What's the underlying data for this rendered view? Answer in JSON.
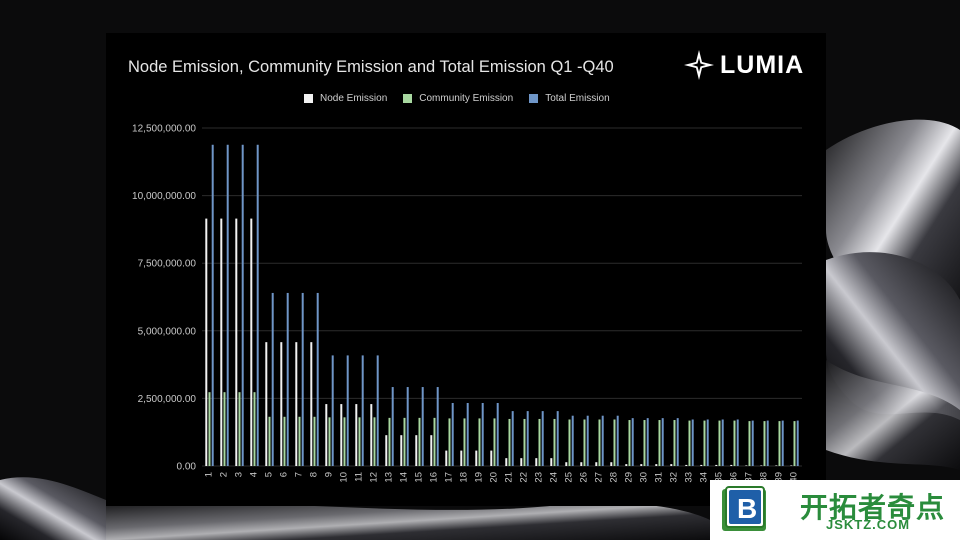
{
  "slide": {
    "logo_text": "LUMIA",
    "watermark": {
      "chinese_text": "开拓者奇点",
      "domain_text": "JSKTZ.COM",
      "badge_letter": "B"
    }
  },
  "colors": {
    "node": "#f2f2f2",
    "community": "#a8d8a0",
    "total": "#6f96c8",
    "grid": "#2c2c2c",
    "axis_text": "#c8c8c8"
  },
  "chart_data": {
    "type": "bar",
    "title": "Node Emission, Community Emission and Total Emission Q1 -Q40",
    "xlabel": "",
    "ylabel": "",
    "ylim": [
      0,
      12500000
    ],
    "y_ticks": [
      "0.00",
      "2,500,000.00",
      "5,000,000.00",
      "7,500,000.00",
      "10,000,000.00",
      "12,500,000.00"
    ],
    "y_tick_values": [
      0,
      2500000,
      5000000,
      7500000,
      10000000,
      12500000
    ],
    "grid": true,
    "legend_position": "top",
    "categories": [
      "1",
      "2",
      "3",
      "4",
      "5",
      "6",
      "7",
      "8",
      "9",
      "10",
      "11",
      "12",
      "13",
      "14",
      "15",
      "16",
      "17",
      "18",
      "19",
      "20",
      "21",
      "22",
      "23",
      "24",
      "25",
      "26",
      "27",
      "28",
      "29",
      "30",
      "31",
      "32",
      "33",
      "34",
      "35",
      "36",
      "37",
      "38",
      "39",
      "40"
    ],
    "series": [
      {
        "name": "Node Emission",
        "values": [
          9150000,
          9150000,
          9150000,
          9150000,
          4580000,
          4580000,
          4580000,
          4580000,
          2290000,
          2290000,
          2290000,
          2290000,
          1140000,
          1140000,
          1140000,
          1140000,
          570000,
          570000,
          570000,
          570000,
          290000,
          290000,
          290000,
          290000,
          140000,
          140000,
          140000,
          140000,
          70000,
          70000,
          70000,
          70000,
          40000,
          40000,
          40000,
          40000,
          20000,
          20000,
          20000,
          20000
        ]
      },
      {
        "name": "Community Emission",
        "values": [
          2730000,
          2730000,
          2730000,
          2730000,
          1820000,
          1820000,
          1820000,
          1820000,
          1800000,
          1800000,
          1800000,
          1800000,
          1780000,
          1780000,
          1780000,
          1780000,
          1760000,
          1760000,
          1760000,
          1760000,
          1740000,
          1740000,
          1740000,
          1740000,
          1720000,
          1720000,
          1720000,
          1720000,
          1700000,
          1700000,
          1700000,
          1700000,
          1680000,
          1680000,
          1680000,
          1680000,
          1660000,
          1660000,
          1660000,
          1660000
        ]
      },
      {
        "name": "Total Emission",
        "values": [
          11880000,
          11880000,
          11880000,
          11880000,
          6400000,
          6400000,
          6400000,
          6400000,
          4090000,
          4090000,
          4090000,
          4090000,
          2920000,
          2920000,
          2920000,
          2920000,
          2330000,
          2330000,
          2330000,
          2330000,
          2030000,
          2030000,
          2030000,
          2030000,
          1860000,
          1860000,
          1860000,
          1860000,
          1770000,
          1770000,
          1770000,
          1770000,
          1720000,
          1720000,
          1720000,
          1720000,
          1680000,
          1680000,
          1680000,
          1680000
        ]
      }
    ]
  }
}
